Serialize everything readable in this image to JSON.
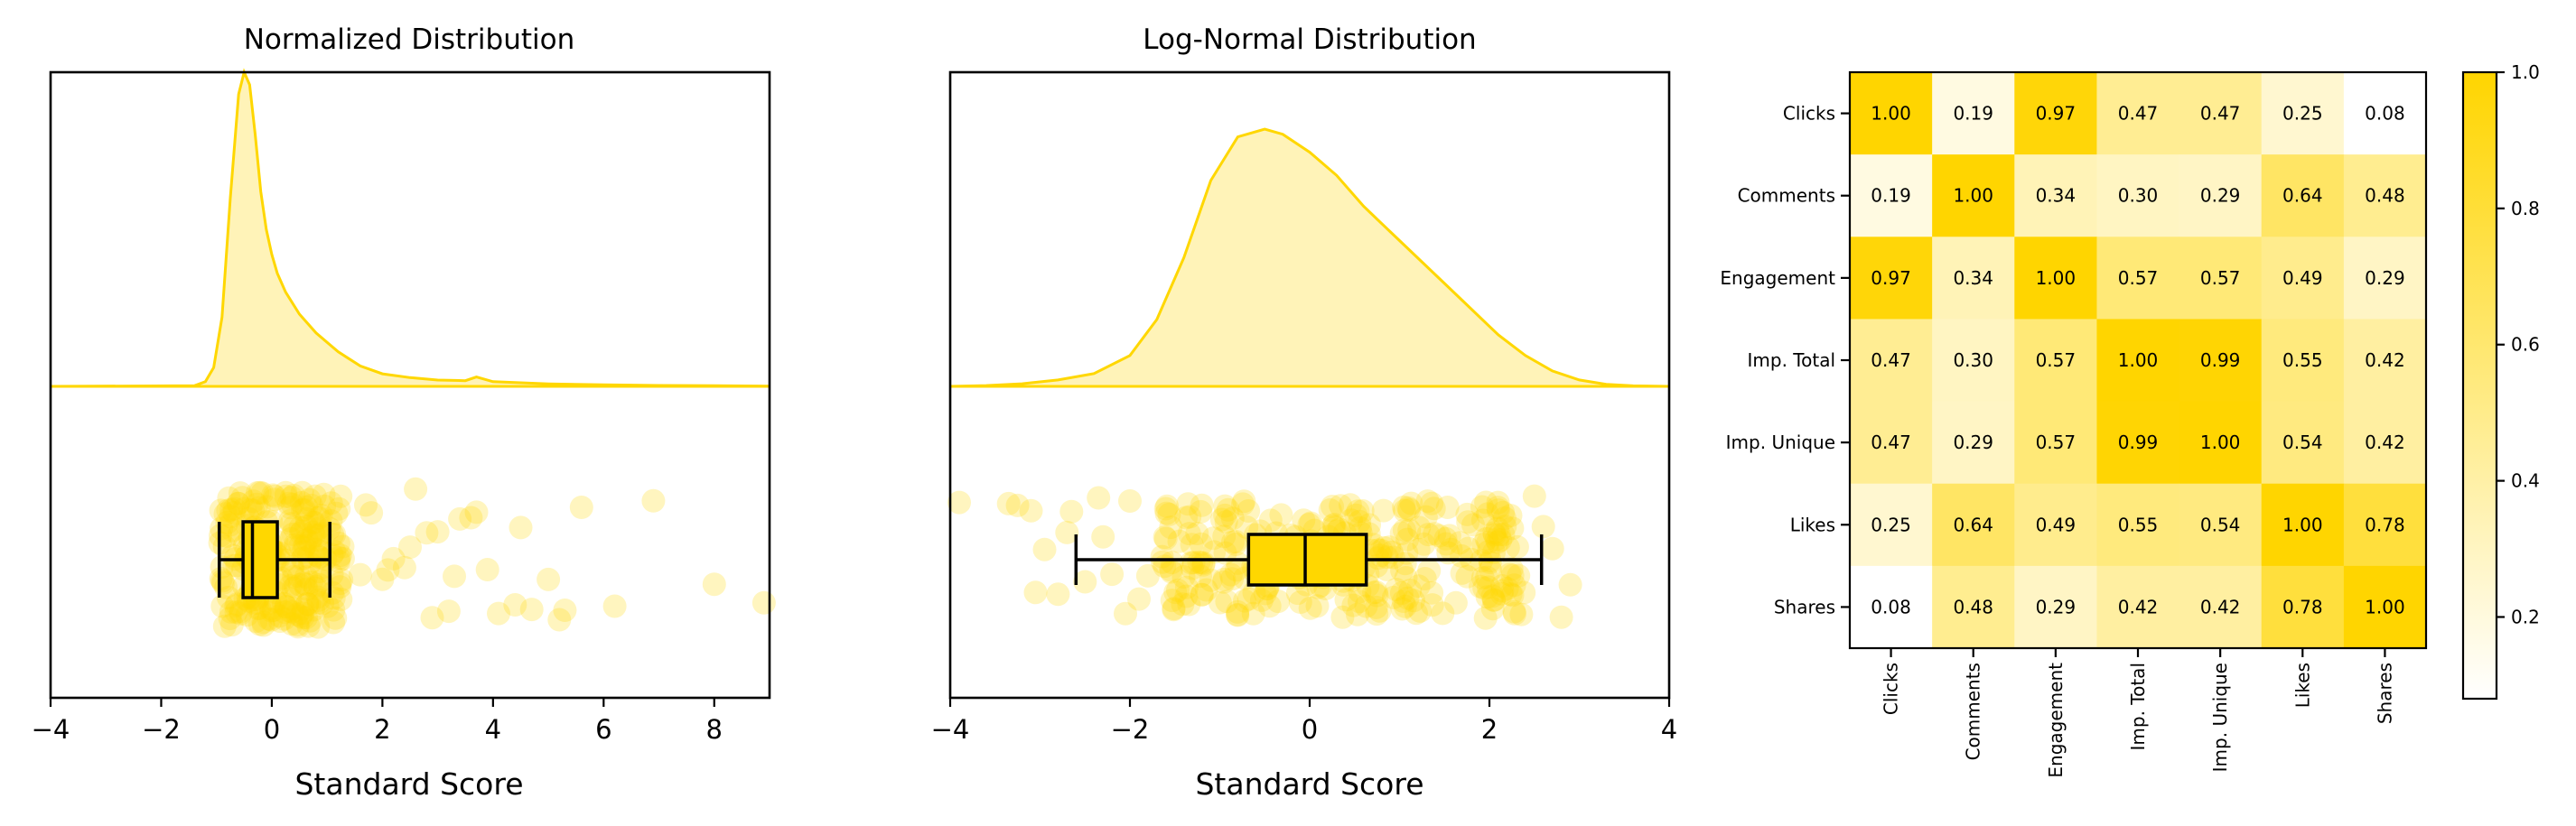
{
  "colors": {
    "accent": "#FFD700",
    "kde_fill": "#FFF3B8",
    "point": "#FFD700",
    "box_fill": "#FFD700",
    "box_edge": "#000000",
    "cmap_low": "#FFFFFF",
    "cmap_high": "#FFD500"
  },
  "chart_data": [
    {
      "type": "raincloud",
      "title": "Normalized Distribution",
      "xlabel": "Standard Score",
      "xlim": [
        -4,
        9
      ],
      "xticks": [
        -4,
        -2,
        0,
        2,
        4,
        6,
        8
      ],
      "xtick_labels": [
        "−4",
        "−2",
        "0",
        "2",
        "4",
        "6",
        "8"
      ],
      "kde": {
        "x": [
          -4,
          -1.4,
          -1.2,
          -1.05,
          -0.9,
          -0.75,
          -0.6,
          -0.5,
          -0.4,
          -0.3,
          -0.2,
          -0.1,
          0,
          0.1,
          0.25,
          0.5,
          0.8,
          1.2,
          1.6,
          2,
          2.5,
          3,
          3.5,
          3.7,
          4,
          5,
          6,
          7,
          8,
          9
        ],
        "density": [
          0,
          0.002,
          0.015,
          0.06,
          0.22,
          0.6,
          0.93,
          1.0,
          0.96,
          0.8,
          0.62,
          0.5,
          0.42,
          0.36,
          0.3,
          0.23,
          0.17,
          0.11,
          0.065,
          0.04,
          0.028,
          0.02,
          0.018,
          0.03,
          0.015,
          0.008,
          0.005,
          0.003,
          0.002,
          0.001
        ]
      },
      "box": {
        "min": -0.95,
        "q1": -0.52,
        "median": -0.35,
        "q3": 0.1,
        "max": 1.05
      },
      "scatter": {
        "dense_x_range": [
          -0.95,
          1.3
        ],
        "dense_count": 260,
        "outliers_x": [
          1.6,
          1.8,
          2.0,
          2.2,
          2.4,
          2.6,
          2.8,
          3.0,
          3.2,
          3.4,
          3.7,
          3.9,
          4.4,
          4.7,
          5.0,
          5.3,
          5.6,
          6.2,
          6.9,
          8.0,
          8.9,
          1.7,
          2.1,
          2.5,
          2.9,
          3.3,
          3.6,
          4.1,
          4.5,
          5.2
        ]
      }
    },
    {
      "type": "raincloud",
      "title": "Log-Normal Distribution",
      "xlabel": "Standard Score",
      "xlim": [
        -4,
        4
      ],
      "xticks": [
        -4,
        -2,
        0,
        2,
        4
      ],
      "xtick_labels": [
        "−4",
        "−2",
        "0",
        "2",
        "4"
      ],
      "kde": {
        "x": [
          -4,
          -3.6,
          -3.2,
          -2.8,
          -2.4,
          -2.0,
          -1.7,
          -1.4,
          -1.1,
          -0.8,
          -0.5,
          -0.3,
          0,
          0.3,
          0.6,
          0.9,
          1.2,
          1.5,
          1.8,
          2.1,
          2.4,
          2.7,
          3.0,
          3.3,
          3.6,
          4.0
        ],
        "density": [
          0,
          0.003,
          0.01,
          0.025,
          0.05,
          0.12,
          0.26,
          0.5,
          0.8,
          0.97,
          1.0,
          0.98,
          0.91,
          0.82,
          0.7,
          0.6,
          0.5,
          0.4,
          0.3,
          0.2,
          0.12,
          0.06,
          0.025,
          0.008,
          0.002,
          0
        ]
      },
      "box": {
        "min": -2.6,
        "q1": -0.68,
        "median": -0.05,
        "q3": 0.63,
        "max": 2.58
      },
      "scatter": {
        "dense_x_range": [
          -1.65,
          2.4
        ],
        "dense_count": 300,
        "outliers_x": [
          -3.9,
          -3.35,
          -3.25,
          -3.1,
          -2.95,
          -2.8,
          -2.65,
          -2.5,
          -2.35,
          -2.2,
          -2.05,
          -1.9,
          -1.8,
          2.5,
          2.6,
          2.7,
          2.8,
          2.9,
          -3.05,
          -2.7,
          -2.3,
          -2.0
        ]
      }
    },
    {
      "type": "heatmap",
      "rows": [
        "Clicks",
        "Comments",
        "Engagement",
        "Imp. Total",
        "Imp. Unique",
        "Likes",
        "Shares"
      ],
      "cols": [
        "Clicks",
        "Comments",
        "Engagement",
        "Imp. Total",
        "Imp. Unique",
        "Likes",
        "Shares"
      ],
      "values": [
        [
          1.0,
          0.19,
          0.97,
          0.47,
          0.47,
          0.25,
          0.08
        ],
        [
          0.19,
          1.0,
          0.34,
          0.3,
          0.29,
          0.64,
          0.48
        ],
        [
          0.97,
          0.34,
          1.0,
          0.57,
          0.57,
          0.49,
          0.29
        ],
        [
          0.47,
          0.3,
          0.57,
          1.0,
          0.99,
          0.55,
          0.42
        ],
        [
          0.47,
          0.29,
          0.57,
          0.99,
          1.0,
          0.54,
          0.42
        ],
        [
          0.25,
          0.64,
          0.49,
          0.55,
          0.54,
          1.0,
          0.78
        ],
        [
          0.08,
          0.48,
          0.29,
          0.42,
          0.42,
          0.78,
          1.0
        ]
      ],
      "value_labels": [
        [
          "1.00",
          "0.19",
          "0.97",
          "0.47",
          "0.47",
          "0.25",
          "0.08"
        ],
        [
          "0.19",
          "1.00",
          "0.34",
          "0.30",
          "0.29",
          "0.64",
          "0.48"
        ],
        [
          "0.97",
          "0.34",
          "1.00",
          "0.57",
          "0.57",
          "0.49",
          "0.29"
        ],
        [
          "0.47",
          "0.30",
          "0.57",
          "1.00",
          "0.99",
          "0.55",
          "0.42"
        ],
        [
          "0.47",
          "0.29",
          "0.57",
          "0.99",
          "1.00",
          "0.54",
          "0.42"
        ],
        [
          "0.25",
          "0.64",
          "0.49",
          "0.55",
          "0.54",
          "1.00",
          "0.78"
        ],
        [
          "0.08",
          "0.48",
          "0.29",
          "0.42",
          "0.42",
          "0.78",
          "1.00"
        ]
      ],
      "colorbar": {
        "vmin": 0.08,
        "vmax": 1.0,
        "ticks": [
          0.2,
          0.4,
          0.6,
          0.8,
          1.0
        ],
        "tick_labels": [
          "0.2",
          "0.4",
          "0.6",
          "0.8",
          "1.0"
        ]
      }
    }
  ]
}
